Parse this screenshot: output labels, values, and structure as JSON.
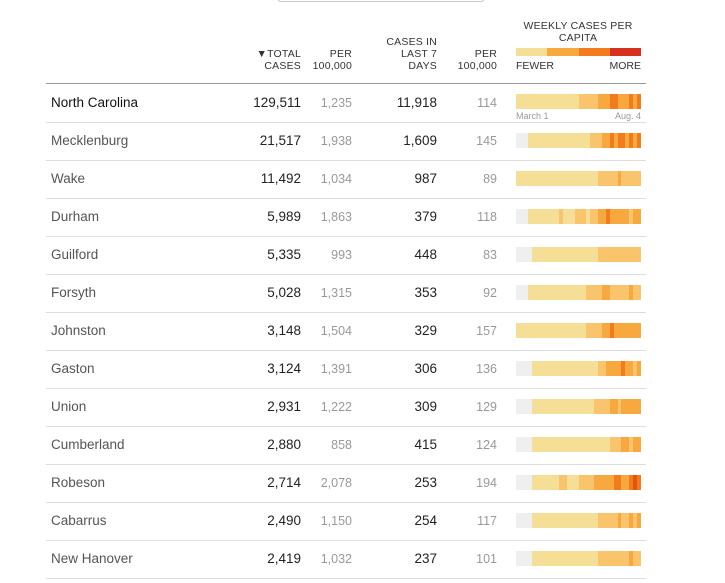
{
  "headers": {
    "total": "▼TOTAL CASES",
    "per100k": "PER 100,000",
    "cases7": "CASES IN LAST 7 DAYS",
    "per100k_2": "PER 100,000",
    "weekly": "WEEKLY CASES PER CAPITA",
    "fewer": "FEWER",
    "more": "MORE"
  },
  "legend_colors": [
    "#f5df96",
    "#f7a93f",
    "#f27b1d",
    "#d7301f"
  ],
  "date_start": "March 1",
  "date_end": "Aug. 4",
  "palette": [
    "#efefef",
    "#f5df96",
    "#f9c46b",
    "#f7a93f",
    "#f27b1d",
    "#e6550d"
  ],
  "rows": [
    {
      "name": "North Carolina",
      "total": "129,511",
      "per100k": "1,235",
      "cases7": "11,918",
      "per100k_7": "114",
      "weekly": [
        1,
        1,
        1,
        1,
        1,
        1,
        1,
        1,
        1,
        1,
        1,
        1,
        1,
        1,
        1,
        1,
        2,
        2,
        2,
        2,
        2,
        3,
        3,
        3,
        4,
        4,
        3,
        3,
        3,
        4,
        3,
        4
      ]
    },
    {
      "name": "Mecklenburg",
      "total": "21,517",
      "per100k": "1,938",
      "cases7": "1,609",
      "per100k_7": "145",
      "weekly": [
        0,
        0,
        0,
        1,
        1,
        1,
        1,
        1,
        1,
        1,
        1,
        1,
        1,
        1,
        1,
        1,
        1,
        1,
        1,
        2,
        2,
        2,
        3,
        3,
        4,
        3,
        4,
        4,
        3,
        4,
        3,
        4
      ]
    },
    {
      "name": "Wake",
      "total": "11,492",
      "per100k": "1,034",
      "cases7": "987",
      "per100k_7": "89",
      "weekly": [
        1,
        1,
        1,
        1,
        1,
        1,
        1,
        1,
        1,
        1,
        1,
        1,
        1,
        1,
        1,
        1,
        1,
        1,
        1,
        1,
        1,
        2,
        2,
        2,
        2,
        2,
        3,
        2,
        2,
        2,
        2,
        2
      ]
    },
    {
      "name": "Durham",
      "total": "5,989",
      "per100k": "1,863",
      "cases7": "379",
      "per100k_7": "118",
      "weekly": [
        0,
        0,
        0,
        1,
        1,
        1,
        1,
        1,
        1,
        1,
        1,
        2,
        1,
        1,
        1,
        2,
        2,
        2,
        1,
        2,
        2,
        3,
        3,
        4,
        3,
        3,
        3,
        3,
        3,
        2,
        3,
        3
      ]
    },
    {
      "name": "Guilford",
      "total": "5,335",
      "per100k": "993",
      "cases7": "448",
      "per100k_7": "83",
      "weekly": [
        0,
        0,
        0,
        0,
        1,
        1,
        1,
        1,
        1,
        1,
        1,
        1,
        1,
        1,
        1,
        1,
        1,
        1,
        1,
        1,
        1,
        2,
        2,
        2,
        2,
        2,
        2,
        2,
        2,
        2,
        2,
        2
      ]
    },
    {
      "name": "Forsyth",
      "total": "5,028",
      "per100k": "1,315",
      "cases7": "353",
      "per100k_7": "92",
      "weekly": [
        0,
        0,
        0,
        1,
        1,
        1,
        1,
        1,
        1,
        1,
        1,
        1,
        1,
        1,
        1,
        1,
        1,
        1,
        2,
        2,
        2,
        2,
        3,
        3,
        2,
        2,
        2,
        2,
        2,
        3,
        2,
        2
      ]
    },
    {
      "name": "Johnston",
      "total": "3,148",
      "per100k": "1,504",
      "cases7": "329",
      "per100k_7": "157",
      "weekly": [
        1,
        1,
        1,
        1,
        1,
        1,
        1,
        1,
        1,
        1,
        1,
        1,
        1,
        1,
        1,
        1,
        1,
        1,
        2,
        2,
        2,
        2,
        3,
        3,
        4,
        3,
        3,
        3,
        3,
        3,
        3,
        3
      ]
    },
    {
      "name": "Gaston",
      "total": "3,124",
      "per100k": "1,391",
      "cases7": "306",
      "per100k_7": "136",
      "weekly": [
        0,
        0,
        0,
        0,
        1,
        1,
        1,
        1,
        1,
        1,
        1,
        1,
        1,
        1,
        1,
        1,
        1,
        1,
        1,
        1,
        1,
        2,
        2,
        3,
        3,
        3,
        3,
        4,
        3,
        3,
        2,
        3
      ]
    },
    {
      "name": "Union",
      "total": "2,931",
      "per100k": "1,222",
      "cases7": "309",
      "per100k_7": "129",
      "weekly": [
        0,
        0,
        0,
        0,
        1,
        1,
        1,
        1,
        1,
        1,
        1,
        1,
        1,
        1,
        1,
        1,
        1,
        1,
        1,
        1,
        2,
        2,
        2,
        2,
        3,
        3,
        2,
        3,
        3,
        3,
        3,
        3
      ]
    },
    {
      "name": "Cumberland",
      "total": "2,880",
      "per100k": "858",
      "cases7": "415",
      "per100k_7": "124",
      "weekly": [
        0,
        0,
        0,
        0,
        1,
        1,
        1,
        1,
        1,
        1,
        1,
        1,
        1,
        1,
        1,
        1,
        1,
        1,
        1,
        1,
        1,
        1,
        1,
        1,
        2,
        2,
        2,
        3,
        3,
        2,
        3,
        3
      ]
    },
    {
      "name": "Robeson",
      "total": "2,714",
      "per100k": "2,078",
      "cases7": "253",
      "per100k_7": "194",
      "weekly": [
        0,
        0,
        0,
        0,
        1,
        1,
        1,
        1,
        1,
        1,
        1,
        2,
        2,
        1,
        1,
        1,
        2,
        2,
        2,
        2,
        3,
        3,
        3,
        3,
        3,
        4,
        4,
        3,
        3,
        4,
        5,
        4
      ]
    },
    {
      "name": "Cabarrus",
      "total": "2,490",
      "per100k": "1,150",
      "cases7": "254",
      "per100k_7": "117",
      "weekly": [
        0,
        0,
        0,
        0,
        1,
        1,
        1,
        1,
        1,
        1,
        1,
        1,
        1,
        1,
        1,
        1,
        1,
        1,
        1,
        1,
        1,
        2,
        2,
        2,
        2,
        2,
        3,
        2,
        2,
        3,
        2,
        3
      ]
    },
    {
      "name": "New Hanover",
      "total": "2,419",
      "per100k": "1,032",
      "cases7": "237",
      "per100k_7": "101",
      "weekly": [
        0,
        0,
        0,
        0,
        1,
        1,
        1,
        1,
        1,
        1,
        1,
        1,
        1,
        1,
        1,
        1,
        1,
        1,
        1,
        1,
        1,
        2,
        2,
        2,
        2,
        2,
        2,
        2,
        2,
        3,
        2,
        2
      ]
    }
  ]
}
